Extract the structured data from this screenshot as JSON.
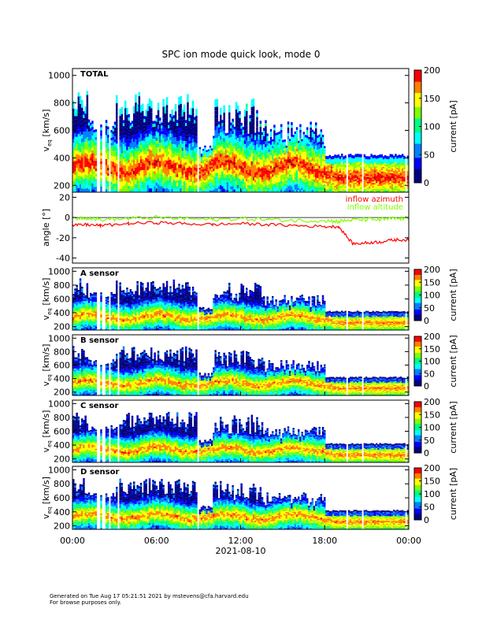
{
  "title": "SPC ion mode quick look, mode 0",
  "colors": {
    "spectrum_scale": [
      "#000080",
      "#0000ff",
      "#0080ff",
      "#00ffff",
      "#00ff80",
      "#80ff00",
      "#ffff00",
      "#ff8000",
      "#ff0000",
      "#b00000"
    ],
    "inflow_azimuth": "#ff0000",
    "inflow_altitude": "#80ff00"
  },
  "panels": [
    {
      "id": "total",
      "label": "TOTAL",
      "ylabel_main": "v",
      "ylabel_sub": "eq",
      "ylabel_unit": " [km/s]",
      "yticks": [
        "200",
        "400",
        "600",
        "800",
        "1000"
      ],
      "colorbar_label": "current [pA]",
      "colorbar_ticks": [
        "0",
        "50",
        "100",
        "150",
        "200"
      ]
    },
    {
      "id": "angle",
      "ylabel": "angle [°]",
      "yticks": [
        "-40",
        "-20",
        "0",
        "20"
      ],
      "legend": [
        "inflow azimuth",
        "inflow altitude"
      ]
    },
    {
      "id": "sensor-a",
      "label": "A sensor",
      "ylabel_main": "v",
      "ylabel_sub": "eq",
      "ylabel_unit": " [km/s]",
      "yticks": [
        "200",
        "400",
        "600",
        "800",
        "1000"
      ],
      "colorbar_label": "current [pA]",
      "colorbar_ticks": [
        "0",
        "50",
        "100",
        "150",
        "200"
      ]
    },
    {
      "id": "sensor-b",
      "label": "B sensor",
      "ylabel_main": "v",
      "ylabel_sub": "eq",
      "ylabel_unit": " [km/s]",
      "yticks": [
        "200",
        "400",
        "600",
        "800",
        "1000"
      ],
      "colorbar_label": "current [pA]",
      "colorbar_ticks": [
        "0",
        "50",
        "100",
        "150",
        "200"
      ]
    },
    {
      "id": "sensor-c",
      "label": "C sensor",
      "ylabel_main": "v",
      "ylabel_sub": "eq",
      "ylabel_unit": " [km/s]",
      "yticks": [
        "200",
        "400",
        "600",
        "800",
        "1000"
      ],
      "colorbar_label": "current [pA]",
      "colorbar_ticks": [
        "0",
        "50",
        "100",
        "150",
        "200"
      ]
    },
    {
      "id": "sensor-d",
      "label": "D sensor",
      "ylabel_main": "v",
      "ylabel_sub": "eq",
      "ylabel_unit": " [km/s]",
      "yticks": [
        "200",
        "400",
        "600",
        "800",
        "1000"
      ],
      "colorbar_label": "current [pA]",
      "colorbar_ticks": [
        "0",
        "50",
        "100",
        "150",
        "200"
      ]
    }
  ],
  "x_axis": {
    "ticks": [
      "00:00",
      "06:00",
      "12:00",
      "18:00",
      "00:00"
    ],
    "date": "2021-08-10"
  },
  "footer": {
    "line1": "Generated on Tue Aug 17 05:21:51 2021 by mstevens@cfa.harvard.edu",
    "line2": "For browse purposes only."
  },
  "chart_data": [
    {
      "type": "heatmap",
      "title": "SPC ion mode quick look, mode 0",
      "panel": "TOTAL",
      "x_unit": "hours",
      "xlim": [
        0,
        24
      ],
      "ylim": [
        150,
        1050
      ],
      "zlim": [
        0,
        200
      ],
      "ylabel": "v_eq [km/s]",
      "zlabel": "current [pA]",
      "peak_velocity_km_s": [
        [
          0,
          280
        ],
        [
          1,
          300
        ],
        [
          2,
          290
        ],
        [
          3,
          320
        ],
        [
          4,
          330
        ],
        [
          5,
          320
        ],
        [
          6,
          300
        ],
        [
          7,
          310
        ],
        [
          8,
          300
        ],
        [
          9,
          280
        ],
        [
          10,
          300
        ],
        [
          11,
          330
        ],
        [
          12,
          320
        ],
        [
          13,
          310
        ],
        [
          14,
          320
        ],
        [
          15,
          310
        ],
        [
          16,
          300
        ],
        [
          17,
          290
        ],
        [
          18,
          280
        ],
        [
          19,
          260
        ],
        [
          20,
          250
        ],
        [
          21,
          245
        ],
        [
          22,
          240
        ],
        [
          23,
          235
        ],
        [
          24,
          235
        ]
      ]
    },
    {
      "type": "line",
      "panel": "angle",
      "xlim": [
        0,
        24
      ],
      "ylim": [
        -45,
        25
      ],
      "ylabel": "angle [°]",
      "series": [
        {
          "name": "inflow azimuth",
          "x": [
            0,
            1,
            2,
            4,
            6,
            8,
            10,
            12,
            14,
            16,
            18,
            19,
            20,
            21,
            22,
            23,
            24
          ],
          "y": [
            -8,
            -7,
            -8,
            -6,
            -5,
            -6,
            -7,
            -6,
            -7,
            -8,
            -9,
            -9,
            -26,
            -25,
            -24,
            -22,
            -22
          ]
        },
        {
          "name": "inflow altitude",
          "x": [
            0,
            1,
            2,
            4,
            6,
            8,
            10,
            12,
            14,
            16,
            18,
            19,
            20,
            21,
            22,
            23,
            24
          ],
          "y": [
            -1,
            0,
            -2,
            -1,
            0,
            -1,
            -2,
            -1,
            -2,
            -3,
            -3,
            -4,
            -2,
            -2,
            -2,
            -1,
            -1
          ]
        }
      ]
    },
    {
      "type": "heatmap",
      "panel": "A sensor",
      "xlim": [
        0,
        24
      ],
      "ylim": [
        150,
        1050
      ],
      "zlim": [
        0,
        200
      ],
      "ylabel": "v_eq [km/s]",
      "zlabel": "current [pA]"
    },
    {
      "type": "heatmap",
      "panel": "B sensor",
      "xlim": [
        0,
        24
      ],
      "ylim": [
        150,
        1050
      ],
      "zlim": [
        0,
        200
      ],
      "ylabel": "v_eq [km/s]",
      "zlabel": "current [pA]"
    },
    {
      "type": "heatmap",
      "panel": "C sensor",
      "xlim": [
        0,
        24
      ],
      "ylim": [
        150,
        1050
      ],
      "zlim": [
        0,
        200
      ],
      "ylabel": "v_eq [km/s]",
      "zlabel": "current [pA]"
    },
    {
      "type": "heatmap",
      "panel": "D sensor",
      "xlim": [
        0,
        24
      ],
      "ylim": [
        150,
        1050
      ],
      "zlim": [
        0,
        200
      ],
      "ylabel": "v_eq [km/s]",
      "zlabel": "current [pA]"
    }
  ]
}
